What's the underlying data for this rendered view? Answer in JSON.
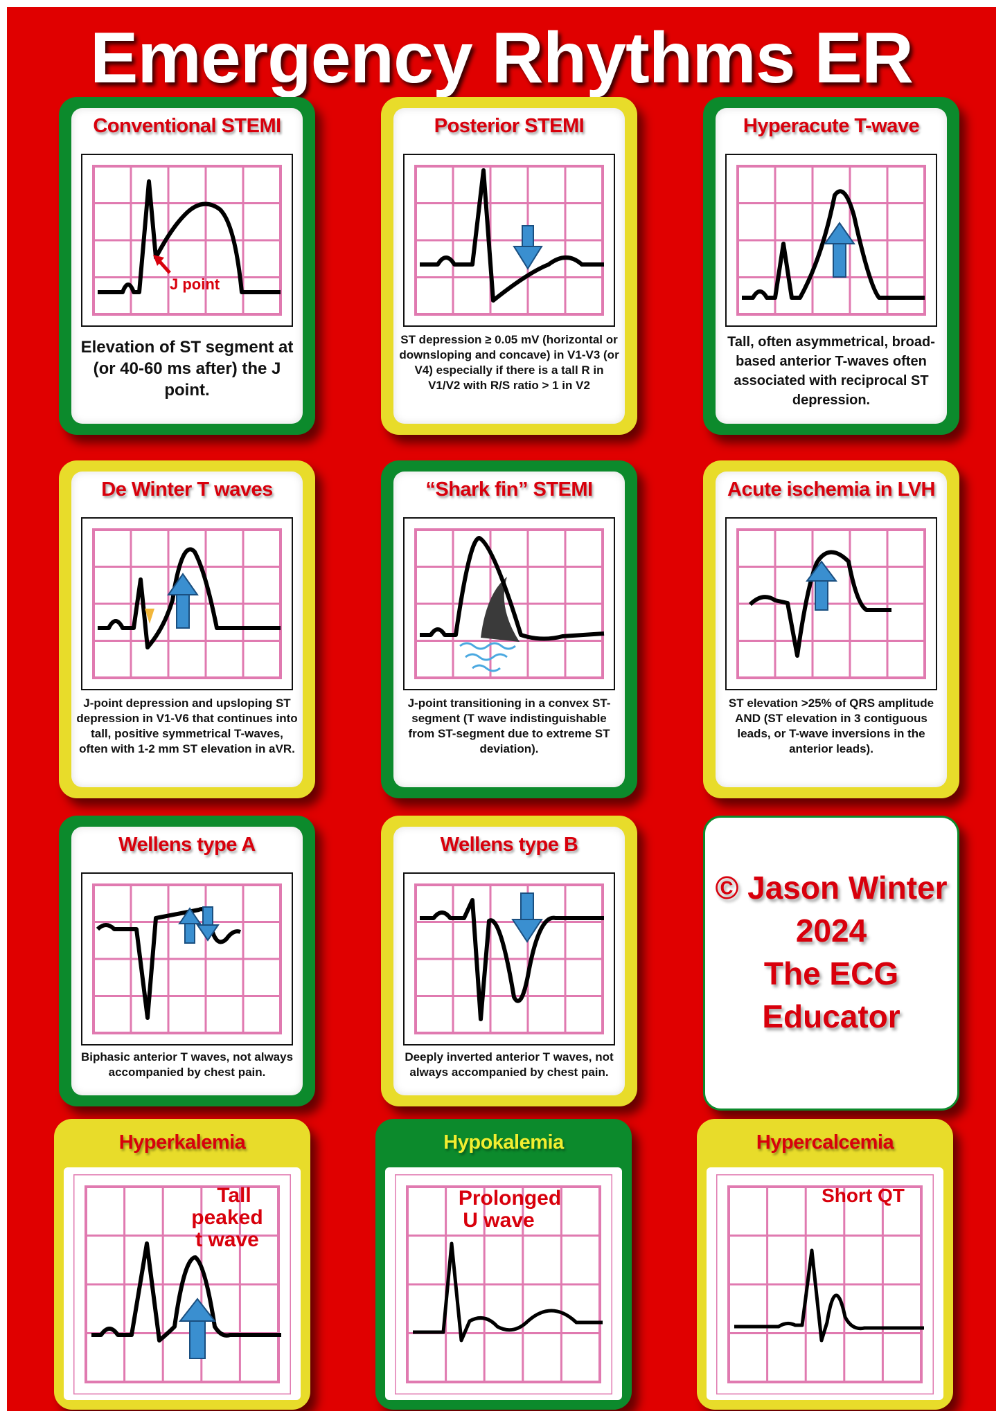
{
  "title": "Emergency Rhythms ER",
  "cards": [
    {
      "title": "Conventional STEMI",
      "desc": "Elevation of ST segment at (or 40-60 ms after) the J point.",
      "annotation": "J point"
    },
    {
      "title": "Posterior STEMI",
      "desc": "ST depression ≥ 0.05 mV (horizontal or downsloping and concave) in V1-V3 (or V4) especially if there is a tall R in V1/V2 with R/S ratio > 1 in V2"
    },
    {
      "title": "Hyperacute T-wave",
      "desc": "Tall, often asymmetrical, broad-based anterior T-waves often associated with reciprocal ST depression."
    },
    {
      "title": "De Winter T waves",
      "desc": "J-point depression and upsloping ST depression in V1-V6 that continues into tall, positive symmetrical T-waves, often with 1-2 mm ST elevation in aVR."
    },
    {
      "title": "“Shark fin” STEMI",
      "desc": "J-point transitioning in a convex ST-segment (T wave indistinguishable from ST-segment due to extreme ST deviation)."
    },
    {
      "title": "Acute ischemia in LVH",
      "desc": "ST elevation >25% of QRS amplitude AND (ST elevation in 3 contiguous leads, or T-wave inversions in the anterior leads)."
    },
    {
      "title": "Wellens type A",
      "desc": "Biphasic anterior T waves, not always accompanied by chest pain."
    },
    {
      "title": "Wellens type B",
      "desc": "Deeply inverted anterior T waves, not always accompanied by chest pain."
    }
  ],
  "copyright": {
    "line1": "© Jason Winter",
    "line2": "2024",
    "line3": "The ECG",
    "line4": "Educator"
  },
  "bottom_cards": [
    {
      "title": "Hyperkalemia",
      "label1": "Tall",
      "label2": "peaked",
      "label3": "t wave"
    },
    {
      "title": "Hypokalemia",
      "label1": "Prolonged",
      "label2": "U wave"
    },
    {
      "title": "Hypercalcemia",
      "label1": "Short QT"
    }
  ],
  "colors": {
    "background": "#e00000",
    "green": "#0c8a2c",
    "yellow": "#e8dc2a",
    "grid": "#e07ab0",
    "arrow": "#3a8fd0",
    "title_red": "#d8000c"
  }
}
